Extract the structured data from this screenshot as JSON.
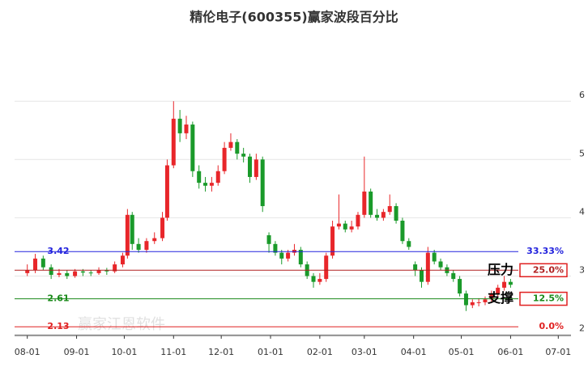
{
  "chart_data": {
    "type": "candlestick",
    "title": "精伦电子(600355)赢家波段百分比",
    "watermark": "赢家江恩软件",
    "x": [
      0,
      5,
      10,
      15,
      20,
      25,
      30,
      35,
      40,
      45,
      50,
      55,
      60,
      63,
      66,
      70,
      75,
      80,
      85,
      88,
      92,
      96,
      100,
      104,
      108,
      112,
      116,
      120,
      124,
      128,
      132,
      136,
      140,
      144,
      148,
      152,
      156,
      160,
      164,
      168,
      172,
      176,
      180,
      184,
      188,
      192,
      196,
      200,
      204,
      208,
      212,
      216,
      220,
      224,
      228,
      232,
      236,
      240,
      244,
      248,
      252,
      256,
      260,
      264,
      268,
      272,
      276,
      280,
      284,
      288,
      292,
      296,
      300,
      304
    ],
    "open": [
      3.05,
      3.1,
      3.3,
      3.15,
      3.02,
      3.05,
      3.0,
      3.08,
      3.06,
      3.05,
      3.1,
      3.08,
      3.2,
      3.35,
      4.05,
      3.55,
      3.45,
      3.6,
      3.65,
      4.0,
      4.9,
      5.7,
      5.45,
      5.6,
      4.8,
      4.6,
      4.55,
      4.6,
      4.8,
      5.2,
      5.3,
      5.1,
      5.05,
      4.7,
      5.0,
      3.7,
      3.55,
      3.4,
      3.3,
      3.4,
      3.45,
      3.2,
      3.0,
      2.9,
      2.95,
      3.35,
      3.85,
      3.9,
      3.8,
      3.85,
      4.05,
      4.45,
      4.05,
      4.0,
      4.1,
      4.2,
      3.95,
      3.6,
      3.2,
      3.1,
      2.9,
      3.4,
      3.25,
      3.15,
      3.05,
      2.95,
      2.7,
      2.5,
      2.55,
      2.55,
      2.6,
      2.7,
      2.8,
      2.9
    ],
    "high": [
      3.2,
      3.38,
      3.35,
      3.2,
      3.12,
      3.1,
      3.12,
      3.12,
      3.1,
      3.15,
      3.14,
      3.25,
      3.4,
      4.15,
      4.1,
      3.65,
      3.65,
      3.75,
      4.1,
      5.0,
      6.0,
      5.85,
      5.75,
      5.65,
      4.9,
      4.7,
      4.7,
      4.9,
      5.3,
      5.45,
      5.35,
      5.2,
      5.1,
      5.1,
      5.05,
      3.75,
      3.6,
      3.45,
      3.45,
      3.55,
      3.5,
      3.25,
      3.05,
      3.05,
      3.4,
      3.95,
      4.4,
      3.95,
      3.95,
      4.1,
      5.05,
      4.5,
      4.15,
      4.15,
      4.4,
      4.25,
      4.0,
      3.65,
      3.25,
      3.15,
      3.5,
      3.45,
      3.3,
      3.2,
      3.1,
      3.0,
      2.75,
      2.6,
      2.62,
      2.65,
      2.75,
      2.85,
      3.0,
      2.95
    ],
    "low": [
      3.0,
      3.05,
      3.1,
      2.95,
      2.98,
      2.95,
      2.97,
      3.0,
      3.0,
      3.02,
      3.02,
      3.05,
      3.15,
      3.3,
      3.45,
      3.4,
      3.4,
      3.55,
      3.6,
      3.95,
      4.85,
      5.3,
      5.35,
      4.7,
      4.5,
      4.45,
      4.45,
      4.55,
      4.75,
      5.15,
      5.0,
      4.95,
      4.6,
      4.65,
      4.1,
      3.4,
      3.35,
      3.2,
      3.25,
      3.35,
      3.15,
      2.95,
      2.8,
      2.85,
      2.9,
      3.3,
      3.8,
      3.75,
      3.75,
      3.8,
      4.0,
      4.0,
      3.95,
      3.95,
      4.05,
      3.9,
      3.55,
      3.45,
      3.0,
      2.8,
      2.85,
      3.2,
      3.1,
      3.0,
      2.9,
      2.65,
      2.4,
      2.45,
      2.48,
      2.5,
      2.55,
      2.65,
      2.75,
      2.8
    ],
    "close": [
      3.1,
      3.3,
      3.15,
      3.02,
      3.05,
      3.0,
      3.08,
      3.06,
      3.05,
      3.1,
      3.08,
      3.2,
      3.35,
      4.05,
      3.55,
      3.45,
      3.6,
      3.65,
      4.0,
      4.9,
      5.7,
      5.45,
      5.6,
      4.8,
      4.6,
      4.55,
      4.6,
      4.8,
      5.2,
      5.3,
      5.1,
      5.05,
      4.7,
      5.0,
      4.2,
      3.55,
      3.4,
      3.3,
      3.4,
      3.45,
      3.2,
      3.0,
      2.9,
      2.95,
      3.35,
      3.85,
      3.9,
      3.8,
      3.85,
      4.05,
      4.45,
      4.05,
      4.0,
      4.1,
      4.2,
      3.95,
      3.6,
      3.5,
      3.1,
      2.9,
      3.4,
      3.25,
      3.15,
      3.05,
      2.95,
      2.7,
      2.5,
      2.55,
      2.55,
      2.6,
      2.7,
      2.8,
      2.9,
      2.85
    ],
    "up_color": "#e8262a",
    "down_color": "#1a9a2a",
    "xlim": [
      -8,
      342
    ],
    "xticks": [
      {
        "value": 0,
        "label": "08-01"
      },
      {
        "value": 31,
        "label": "09-01"
      },
      {
        "value": 61,
        "label": "10-01"
      },
      {
        "value": 92,
        "label": "11-01"
      },
      {
        "value": 122,
        "label": "12-01"
      },
      {
        "value": 153,
        "label": "01-01"
      },
      {
        "value": 184,
        "label": "02-01"
      },
      {
        "value": 212,
        "label": "03-01"
      },
      {
        "value": 243,
        "label": "04-01"
      },
      {
        "value": 273,
        "label": "05-01"
      },
      {
        "value": 304,
        "label": "06-01"
      },
      {
        "value": 334,
        "label": "07-01"
      }
    ],
    "ylim": [
      1.98,
      6.35
    ],
    "yticks": [
      2,
      3,
      4,
      5,
      6
    ],
    "grid": true,
    "levels": [
      {
        "value": 3.42,
        "pct": "33.33%",
        "color": "#2222dd",
        "show_value": true
      },
      {
        "value": 3.1,
        "pct": "25.0%",
        "color": "#b02020",
        "show_value": false,
        "tag": "压力",
        "boxed": true
      },
      {
        "value": 2.61,
        "pct": "12.5%",
        "color": "#1a8a1a",
        "show_value": true,
        "tag": "支撑",
        "boxed": true
      },
      {
        "value": 2.13,
        "pct": "0.0%",
        "color": "#e02020",
        "show_value": true
      }
    ]
  }
}
